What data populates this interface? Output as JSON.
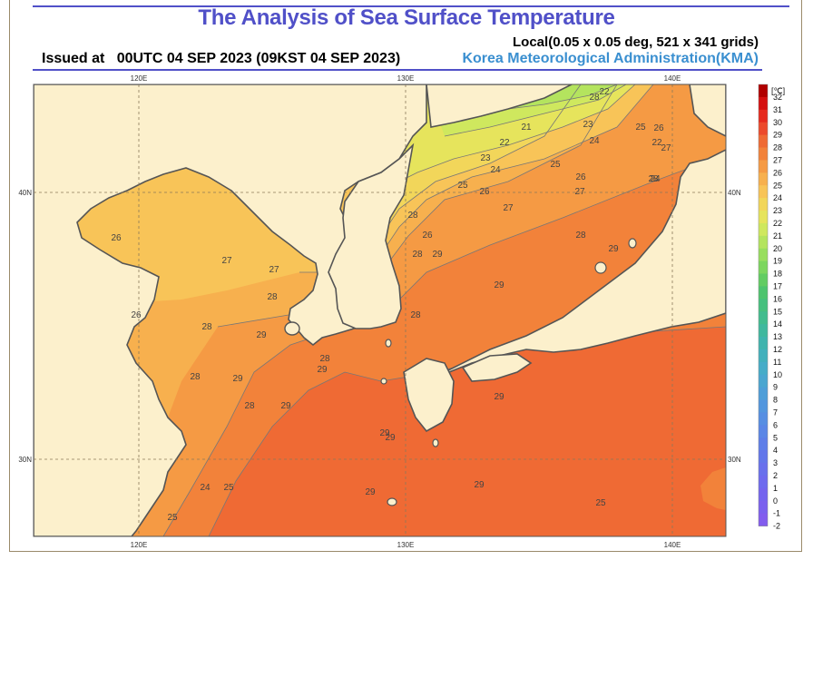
{
  "header": {
    "title": "The Analysis of Sea Surface Temperature",
    "grid_info": "Local(0.05 x 0.05 deg, 521 x 341 grids)",
    "issued": "Issued at   00UTC 04 SEP 2023 (09KST 04 SEP 2023)",
    "agency": "Korea Meteorological Administration(KMA)"
  },
  "map": {
    "lon_ticks": [
      "120E",
      "130E",
      "140E"
    ],
    "lat_ticks": [
      "40N",
      "30N"
    ],
    "contour_labels": [
      "22",
      "21",
      "22",
      "23",
      "24",
      "25",
      "23",
      "22",
      "26",
      "27",
      "24",
      "24",
      "25",
      "26",
      "27",
      "25",
      "26",
      "28",
      "29",
      "28",
      "26",
      "27",
      "28",
      "29",
      "28",
      "28",
      "29",
      "29",
      "28",
      "29",
      "29",
      "28",
      "29",
      "29",
      "28",
      "29",
      "29",
      "25",
      "24",
      "25",
      "25",
      "26",
      "26",
      "27",
      "27",
      "28",
      "28",
      "29",
      "28",
      "29"
    ],
    "colors": {
      "land": "#fcf0cc",
      "coast": "#555555",
      "grid": "#8a7a5a"
    }
  },
  "colorbar": {
    "unit": "[℃]",
    "labels": [
      "32",
      "31",
      "30",
      "29",
      "28",
      "27",
      "26",
      "25",
      "24",
      "23",
      "22",
      "21",
      "20",
      "19",
      "18",
      "17",
      "16",
      "15",
      "14",
      "13",
      "12",
      "11",
      "10",
      "9",
      "8",
      "7",
      "6",
      "5",
      "4",
      "3",
      "2",
      "1",
      "0",
      "-1",
      "-2"
    ],
    "colors": [
      "#b00000",
      "#d51010",
      "#e62a1e",
      "#ec4a2c",
      "#ef6a34",
      "#f2823a",
      "#f59a44",
      "#f7b04e",
      "#f8c458",
      "#f2d65a",
      "#e6e45c",
      "#cfe85e",
      "#b4e45e",
      "#98de5e",
      "#7cd65e",
      "#62cc62",
      "#4ec46e",
      "#46c07e",
      "#42bc8e",
      "#40b89e",
      "#40b4ae",
      "#42b0bc",
      "#46acc8",
      "#4aa6d0",
      "#4e9ed8",
      "#5296de",
      "#568ee2",
      "#5a86e6",
      "#5e7ee8",
      "#6276ea",
      "#6870ec",
      "#6e6aee",
      "#7464ee",
      "#7a60ee",
      "#825cee"
    ]
  }
}
